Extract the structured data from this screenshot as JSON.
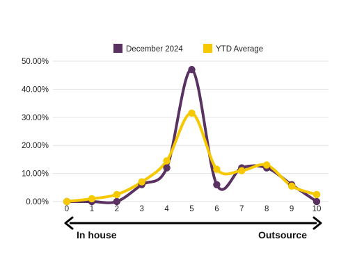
{
  "chart_data": {
    "type": "line",
    "x": [
      0,
      1,
      2,
      3,
      4,
      5,
      6,
      7,
      8,
      9,
      10
    ],
    "ylim": [
      0,
      0.5
    ],
    "yticks": [
      0,
      0.1,
      0.2,
      0.3,
      0.4,
      0.5
    ],
    "ytick_labels": [
      "0.00%",
      "10.00%",
      "20.00%",
      "30.00%",
      "40.00%",
      "50.00%"
    ],
    "grid": true,
    "legend_position": "top-center",
    "smooth": true,
    "series": [
      {
        "name": "December 2024",
        "color": "#5a3262",
        "values": [
          0.0,
          0.0,
          0.0,
          0.06,
          0.12,
          0.47,
          0.06,
          0.12,
          0.12,
          0.06,
          0.0
        ]
      },
      {
        "name": "YTD Average",
        "color": "#f5c800",
        "values": [
          0.0,
          0.01,
          0.025,
          0.07,
          0.145,
          0.315,
          0.115,
          0.11,
          0.13,
          0.055,
          0.025
        ]
      }
    ],
    "scale_arrow": {
      "left_label": "In house",
      "right_label": "Outsource"
    }
  }
}
